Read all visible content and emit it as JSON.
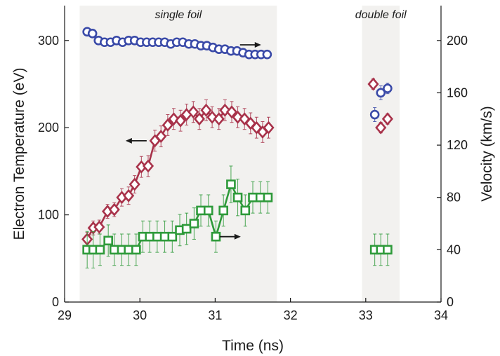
{
  "chart_data": {
    "type": "scatter",
    "title": "",
    "xlabel": "Time (ns)",
    "ylabel_left": "Electron Temperature (eV)",
    "ylabel_right": "Velocity (km/s)",
    "xlim": [
      29,
      34
    ],
    "ylim_left": [
      0,
      340
    ],
    "ylim_right": [
      0,
      226.7
    ],
    "x_ticks": [
      "29",
      "30",
      "31",
      "32",
      "33",
      "34"
    ],
    "y_left_ticks": [
      "0",
      "100",
      "200",
      "300"
    ],
    "y_right_ticks": [
      "0",
      "40",
      "80",
      "120",
      "160",
      "200"
    ],
    "regions": [
      {
        "label": "single foil",
        "x_start": 29.2,
        "x_end": 31.82
      },
      {
        "label": "double foil",
        "x_start": 32.95,
        "x_end": 33.45
      }
    ],
    "colors": {
      "blue": "#3a4aa8",
      "red": "#a8324a",
      "green": "#2e9a3a",
      "region": "#f2f1ef",
      "axis": "#1a1a1a",
      "arrow": "#1a1a1a"
    },
    "series": [
      {
        "marker": "circle",
        "color_key": "blue",
        "axis": "left",
        "connected": true,
        "x": [
          29.3,
          29.37,
          29.45,
          29.53,
          29.61,
          29.69,
          29.77,
          29.85,
          29.93,
          30.01,
          30.09,
          30.17,
          30.25,
          30.33,
          30.41,
          30.49,
          30.57,
          30.65,
          30.73,
          30.81,
          30.89,
          30.97,
          31.05,
          31.13,
          31.21,
          31.29,
          31.37,
          31.45,
          31.53,
          31.61,
          31.69
        ],
        "y": [
          310,
          308,
          300,
          298,
          298,
          300,
          298,
          300,
          300,
          298,
          298,
          298,
          298,
          298,
          296,
          298,
          298,
          296,
          296,
          294,
          294,
          292,
          290,
          290,
          288,
          288,
          286,
          284,
          284,
          284,
          284
        ]
      },
      {
        "marker": "diamond",
        "color_key": "red",
        "axis": "left",
        "connected": true,
        "x": [
          29.3,
          29.38,
          29.46,
          29.57,
          29.66,
          29.76,
          29.85,
          29.93,
          30.02,
          30.11,
          30.2,
          30.28,
          30.37,
          30.45,
          30.54,
          30.62,
          30.71,
          30.79,
          30.88,
          30.96,
          31.05,
          31.13,
          31.22,
          31.3,
          31.39,
          31.47,
          31.55,
          31.63,
          31.71
        ],
        "y": [
          72,
          85,
          86,
          104,
          106,
          120,
          122,
          135,
          155,
          156,
          185,
          190,
          203,
          210,
          208,
          215,
          218,
          210,
          220,
          212,
          210,
          220,
          218,
          212,
          210,
          205,
          200,
          195,
          200
        ],
        "y_err": [
          8,
          8,
          8,
          8,
          8,
          10,
          10,
          10,
          12,
          12,
          12,
          12,
          12,
          12,
          12,
          12,
          12,
          12,
          12,
          12,
          12,
          12,
          12,
          12,
          12,
          12,
          12,
          12,
          12
        ]
      },
      {
        "marker": "square",
        "color_key": "green",
        "axis": "right",
        "connected": true,
        "x": [
          29.3,
          29.38,
          29.47,
          29.58,
          29.66,
          29.76,
          29.85,
          29.95,
          30.04,
          30.13,
          30.23,
          30.33,
          30.43,
          30.53,
          30.62,
          30.72,
          30.81,
          30.91,
          31.01,
          31.11,
          31.21,
          31.3,
          31.4,
          31.5,
          31.6,
          31.7
        ],
        "y": [
          40,
          40,
          40,
          47,
          40,
          40,
          40,
          40,
          50,
          50,
          50,
          50,
          50,
          55,
          56,
          60,
          70,
          70,
          50,
          70,
          90,
          80,
          70,
          80,
          80,
          80
        ],
        "y_err": [
          14,
          14,
          12,
          12,
          12,
          12,
          12,
          12,
          12,
          12,
          12,
          12,
          12,
          12,
          12,
          12,
          12,
          12,
          12,
          12,
          14,
          14,
          12,
          12,
          12,
          12
        ]
      },
      {
        "marker": "diamond",
        "color_key": "red",
        "axis": "left",
        "connected": false,
        "x": [
          33.1,
          33.2,
          33.29
        ],
        "y": [
          250,
          200,
          210
        ],
        "y_err": [
          6,
          6,
          6
        ]
      },
      {
        "marker": "circle",
        "color_key": "blue",
        "axis": "left",
        "connected": false,
        "x": [
          33.12,
          33.2,
          33.29
        ],
        "y": [
          215,
          240,
          245
        ],
        "y_err": [
          8,
          8,
          6
        ]
      },
      {
        "marker": "square",
        "color_key": "green",
        "axis": "right",
        "connected": true,
        "x": [
          33.12,
          33.2,
          33.29
        ],
        "y": [
          40,
          40,
          40
        ],
        "y_err": [
          12,
          12,
          12
        ]
      }
    ],
    "arrows": [
      {
        "x": 31.47,
        "y": 295,
        "direction": "right"
      },
      {
        "x": 29.95,
        "y": 185,
        "direction": "left"
      },
      {
        "x": 31.2,
        "y": 75,
        "direction": "right"
      }
    ]
  }
}
